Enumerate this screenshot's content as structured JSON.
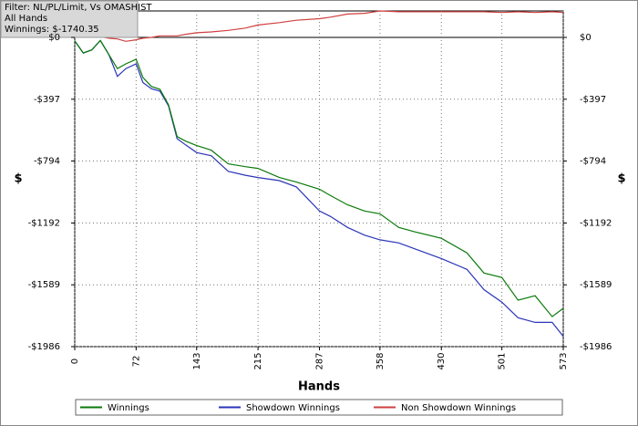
{
  "chart_data": {
    "type": "line",
    "annotations": [
      "Filter: NL/PL/Limit, Vs OMASHIST",
      "All Hands",
      "Winnings: $-1740.35"
    ],
    "x_label": "Hands",
    "y_label": "$",
    "y2_label": "$",
    "x": [
      0,
      10,
      20,
      30,
      40,
      50,
      60,
      72,
      80,
      90,
      100,
      110,
      120,
      130,
      143,
      160,
      180,
      200,
      215,
      240,
      260,
      287,
      300,
      320,
      340,
      358,
      380,
      400,
      430,
      460,
      480,
      501,
      520,
      540,
      560,
      573
    ],
    "xlim": [
      0,
      573
    ],
    "xticks": [
      0,
      72,
      143,
      215,
      287,
      358,
      430,
      501,
      573
    ],
    "ylim": [
      -1986,
      170
    ],
    "yticks": [
      {
        "value": 0,
        "label": "$0"
      },
      {
        "value": -397,
        "label": "-$397"
      },
      {
        "value": -794,
        "label": "-$794"
      },
      {
        "value": -1192,
        "label": "-$1192"
      },
      {
        "value": -1589,
        "label": "-$1589"
      },
      {
        "value": -1986,
        "label": "-$1986"
      }
    ],
    "y2lim": [
      -1986,
      170
    ],
    "y2ticks": [
      {
        "value": 0,
        "label": "$0"
      },
      {
        "value": -397,
        "label": "-$397"
      },
      {
        "value": -794,
        "label": "-$794"
      },
      {
        "value": -1192,
        "label": "-$1192"
      },
      {
        "value": -1589,
        "label": "-$1589"
      },
      {
        "value": -1986,
        "label": "-$1986"
      }
    ],
    "grid": true,
    "legend": "bottom",
    "series": [
      {
        "name": "Winnings",
        "color": "#0a7a0a",
        "values": [
          -23,
          -100,
          -80,
          -20,
          -110,
          -200,
          -170,
          -140,
          -257,
          -315,
          -333,
          -432,
          -637,
          -666,
          -695,
          -724,
          -812,
          -830,
          -841,
          -900,
          -929,
          -975,
          -1016,
          -1075,
          -1115,
          -1133,
          -1220,
          -1250,
          -1290,
          -1384,
          -1513,
          -1542,
          -1688,
          -1659,
          -1793,
          -1740
        ]
      },
      {
        "name": "Showdown Winnings",
        "color": "#2b35b8",
        "values": [
          -23,
          -100,
          -80,
          -20,
          -110,
          -250,
          -200,
          -170,
          -290,
          -330,
          -345,
          -440,
          -650,
          -690,
          -740,
          -760,
          -860,
          -885,
          -900,
          -920,
          -960,
          -1115,
          -1150,
          -1220,
          -1270,
          -1300,
          -1320,
          -1360,
          -1420,
          -1490,
          -1620,
          -1700,
          -1800,
          -1830,
          -1830,
          -1920
        ]
      },
      {
        "name": "Non Showdown Winnings",
        "color": "#d04040",
        "values": [
          0,
          10,
          15,
          5,
          -5,
          -10,
          -25,
          -15,
          -5,
          0,
          10,
          10,
          10,
          20,
          30,
          35,
          45,
          60,
          80,
          95,
          110,
          120,
          130,
          150,
          155,
          170,
          165,
          165,
          165,
          165,
          165,
          160,
          165,
          160,
          165,
          160
        ]
      }
    ]
  }
}
